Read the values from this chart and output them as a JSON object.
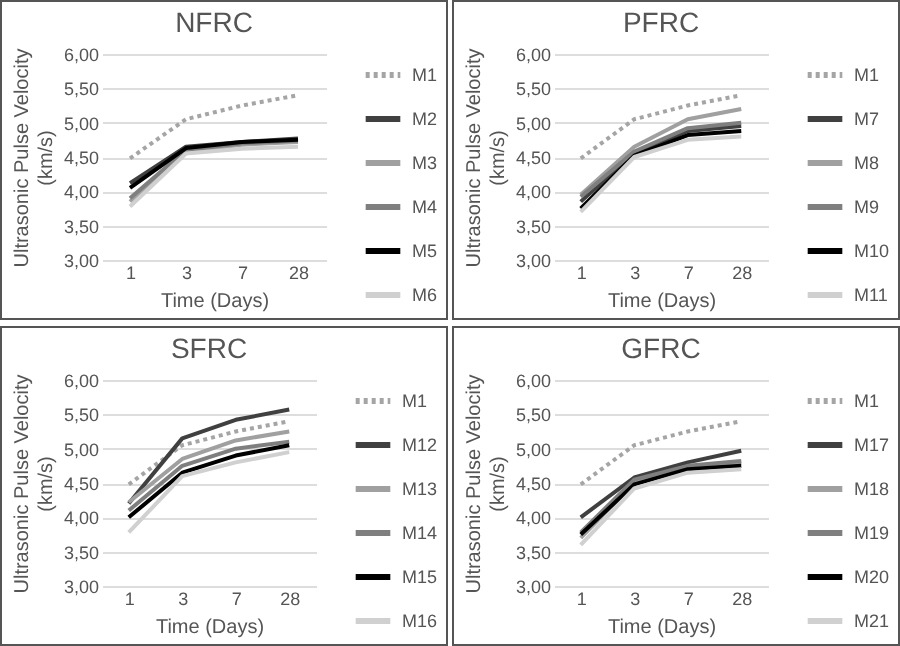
{
  "chart_data": [
    {
      "type": "line",
      "title": "NFRC",
      "xlabel": "Time (Days)",
      "ylabel": "Ultrasonic Pulse Velocity (km/s)",
      "categories": [
        "1",
        "3",
        "7",
        "28"
      ],
      "ylim": [
        3,
        6
      ],
      "yticks": [
        {
          "value": 3,
          "label": "3,00"
        },
        {
          "value": 3.5,
          "label": "3,50"
        },
        {
          "value": 4,
          "label": "4,00"
        },
        {
          "value": 4.5,
          "label": "4,50"
        },
        {
          "value": 5,
          "label": "5,00"
        },
        {
          "value": 5.5,
          "label": "5,50"
        },
        {
          "value": 6,
          "label": "6,00"
        }
      ],
      "grid": "y",
      "legend": "right",
      "marker": "none",
      "line_style": "solid",
      "series": [
        {
          "name": "M1",
          "color": "#a5a5a5",
          "line_style": "dotted",
          "values": [
            4.48,
            5.05,
            5.25,
            5.4
          ]
        },
        {
          "name": "M2",
          "color": "#404040",
          "values": [
            4.12,
            4.65,
            4.72,
            4.77
          ]
        },
        {
          "name": "M3",
          "color": "#a0a0a0",
          "values": [
            3.85,
            4.58,
            4.68,
            4.72
          ]
        },
        {
          "name": "M4",
          "color": "#7f7f7f",
          "values": [
            3.9,
            4.6,
            4.7,
            4.74
          ]
        },
        {
          "name": "M5",
          "color": "#000000",
          "values": [
            4.05,
            4.63,
            4.72,
            4.75
          ]
        },
        {
          "name": "M6",
          "color": "#d0d0d0",
          "values": [
            3.78,
            4.55,
            4.62,
            4.65
          ]
        }
      ]
    },
    {
      "type": "line",
      "title": "PFRC",
      "xlabel": "Time (Days)",
      "ylabel": "Ultrasonic Pulse Velocity (km/s)",
      "categories": [
        "1",
        "3",
        "7",
        "28"
      ],
      "ylim": [
        3,
        6
      ],
      "yticks": [
        {
          "value": 3,
          "label": "3,00"
        },
        {
          "value": 3.5,
          "label": "3,50"
        },
        {
          "value": 4,
          "label": "4,00"
        },
        {
          "value": 4.5,
          "label": "4,50"
        },
        {
          "value": 5,
          "label": "5,00"
        },
        {
          "value": 5.5,
          "label": "5,50"
        },
        {
          "value": 6,
          "label": "6,00"
        }
      ],
      "grid": "y",
      "legend": "right",
      "marker": "none",
      "line_style": "solid",
      "series": [
        {
          "name": "M1",
          "color": "#a5a5a5",
          "line_style": "dotted",
          "values": [
            4.48,
            5.05,
            5.25,
            5.4
          ]
        },
        {
          "name": "M7",
          "color": "#404040",
          "values": [
            3.85,
            4.55,
            4.88,
            4.95
          ]
        },
        {
          "name": "M8",
          "color": "#a0a0a0",
          "values": [
            3.95,
            4.65,
            5.05,
            5.2
          ]
        },
        {
          "name": "M9",
          "color": "#7f7f7f",
          "values": [
            3.92,
            4.58,
            4.92,
            5.0
          ]
        },
        {
          "name": "M10",
          "color": "#000000",
          "values": [
            3.75,
            4.52,
            4.82,
            4.88
          ]
        },
        {
          "name": "M11",
          "color": "#d0d0d0",
          "values": [
            3.7,
            4.5,
            4.75,
            4.8
          ]
        }
      ]
    },
    {
      "type": "line",
      "title": "SFRC",
      "xlabel": "Time (Days)",
      "ylabel": "Ultrasonic Pulse Velocity (km/s)",
      "categories": [
        "1",
        "3",
        "7",
        "28"
      ],
      "ylim": [
        3,
        6
      ],
      "yticks": [
        {
          "value": 3,
          "label": "3,00"
        },
        {
          "value": 3.5,
          "label": "3,50"
        },
        {
          "value": 4,
          "label": "4,00"
        },
        {
          "value": 4.5,
          "label": "4,50"
        },
        {
          "value": 5,
          "label": "5,00"
        },
        {
          "value": 5.5,
          "label": "5,50"
        },
        {
          "value": 6,
          "label": "6,00"
        }
      ],
      "grid": "y",
      "legend": "right",
      "marker": "none",
      "line_style": "solid",
      "series": [
        {
          "name": "M1",
          "color": "#a5a5a5",
          "line_style": "dotted",
          "values": [
            4.48,
            5.05,
            5.25,
            5.4
          ]
        },
        {
          "name": "M12",
          "color": "#404040",
          "values": [
            4.2,
            5.15,
            5.42,
            5.57
          ]
        },
        {
          "name": "M13",
          "color": "#a0a0a0",
          "values": [
            4.22,
            4.85,
            5.12,
            5.25
          ]
        },
        {
          "name": "M14",
          "color": "#7f7f7f",
          "values": [
            4.1,
            4.75,
            5.0,
            5.1
          ]
        },
        {
          "name": "M15",
          "color": "#000000",
          "values": [
            4.0,
            4.65,
            4.9,
            5.05
          ]
        },
        {
          "name": "M16",
          "color": "#d0d0d0",
          "values": [
            3.78,
            4.6,
            4.8,
            4.95
          ]
        }
      ]
    },
    {
      "type": "line",
      "title": "GFRC",
      "xlabel": "Time (Days)",
      "ylabel": "Ultrasonic Pulse Velocity (km/s)",
      "categories": [
        "1",
        "3",
        "7",
        "28"
      ],
      "ylim": [
        3,
        6
      ],
      "yticks": [
        {
          "value": 3,
          "label": "3,00"
        },
        {
          "value": 3.5,
          "label": "3,50"
        },
        {
          "value": 4,
          "label": "4,00"
        },
        {
          "value": 4.5,
          "label": "4,50"
        },
        {
          "value": 5,
          "label": "5,00"
        },
        {
          "value": 5.5,
          "label": "5,50"
        },
        {
          "value": 6,
          "label": "6,00"
        }
      ],
      "grid": "y",
      "legend": "right",
      "marker": "none",
      "line_style": "solid",
      "series": [
        {
          "name": "M1",
          "color": "#a5a5a5",
          "line_style": "dotted",
          "values": [
            4.48,
            5.05,
            5.25,
            5.4
          ]
        },
        {
          "name": "M17",
          "color": "#404040",
          "values": [
            4.0,
            4.58,
            4.8,
            4.97
          ]
        },
        {
          "name": "M18",
          "color": "#a0a0a0",
          "values": [
            3.7,
            4.5,
            4.72,
            4.8
          ]
        },
        {
          "name": "M19",
          "color": "#7f7f7f",
          "values": [
            3.78,
            4.55,
            4.75,
            4.82
          ]
        },
        {
          "name": "M20",
          "color": "#000000",
          "values": [
            3.75,
            4.48,
            4.7,
            4.75
          ]
        },
        {
          "name": "M21",
          "color": "#d0d0d0",
          "values": [
            3.6,
            4.42,
            4.65,
            4.7
          ]
        }
      ]
    }
  ]
}
